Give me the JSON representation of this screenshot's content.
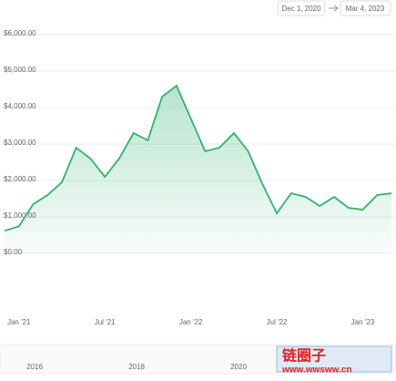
{
  "chart_data": {
    "type": "line",
    "date_range": {
      "from": "Dec 1, 2020",
      "to": "Mar 4, 2023"
    },
    "x": [
      "2020-12",
      "2021-01",
      "2021-02",
      "2021-03",
      "2021-04",
      "2021-05",
      "2021-06",
      "2021-07",
      "2021-08",
      "2021-09",
      "2021-10",
      "2021-11",
      "2021-12",
      "2022-01",
      "2022-02",
      "2022-03",
      "2022-04",
      "2022-05",
      "2022-06",
      "2022-07",
      "2022-08",
      "2022-09",
      "2022-10",
      "2022-11",
      "2022-12",
      "2023-01",
      "2023-02",
      "2023-03"
    ],
    "values": [
      620,
      740,
      1350,
      1600,
      1950,
      2900,
      2600,
      2100,
      2600,
      3300,
      3100,
      4300,
      4600,
      3700,
      2800,
      2900,
      3300,
      2800,
      1900,
      1100,
      1650,
      1550,
      1300,
      1550,
      1250,
      1200,
      1600,
      1650
    ],
    "color": "#2fb36f",
    "ylim": [
      0,
      6000
    ],
    "yticks": [
      {
        "value": 0,
        "label": "$0.00"
      },
      {
        "value": 1000,
        "label": "$1,000.00"
      },
      {
        "value": 2000,
        "label": "$2,000.00"
      },
      {
        "value": 3000,
        "label": "$3,000.00"
      },
      {
        "value": 4000,
        "label": "$4,000.00"
      },
      {
        "value": 5000,
        "label": "$5,000.00"
      },
      {
        "value": 6000,
        "label": "$6,000.00"
      }
    ],
    "xticks": [
      {
        "value": "2021-01",
        "label": "Jan '21"
      },
      {
        "value": "2021-07",
        "label": "Jul '21"
      },
      {
        "value": "2022-01",
        "label": "Jan '22"
      },
      {
        "value": "2022-07",
        "label": "Jul '22"
      },
      {
        "value": "2023-01",
        "label": "Jan '23"
      }
    ],
    "grid": true,
    "navigator_labels": [
      "2016",
      "2018",
      "2020"
    ],
    "watermark": {
      "title": "链圈子",
      "url": "www.wwsww.cn"
    }
  }
}
